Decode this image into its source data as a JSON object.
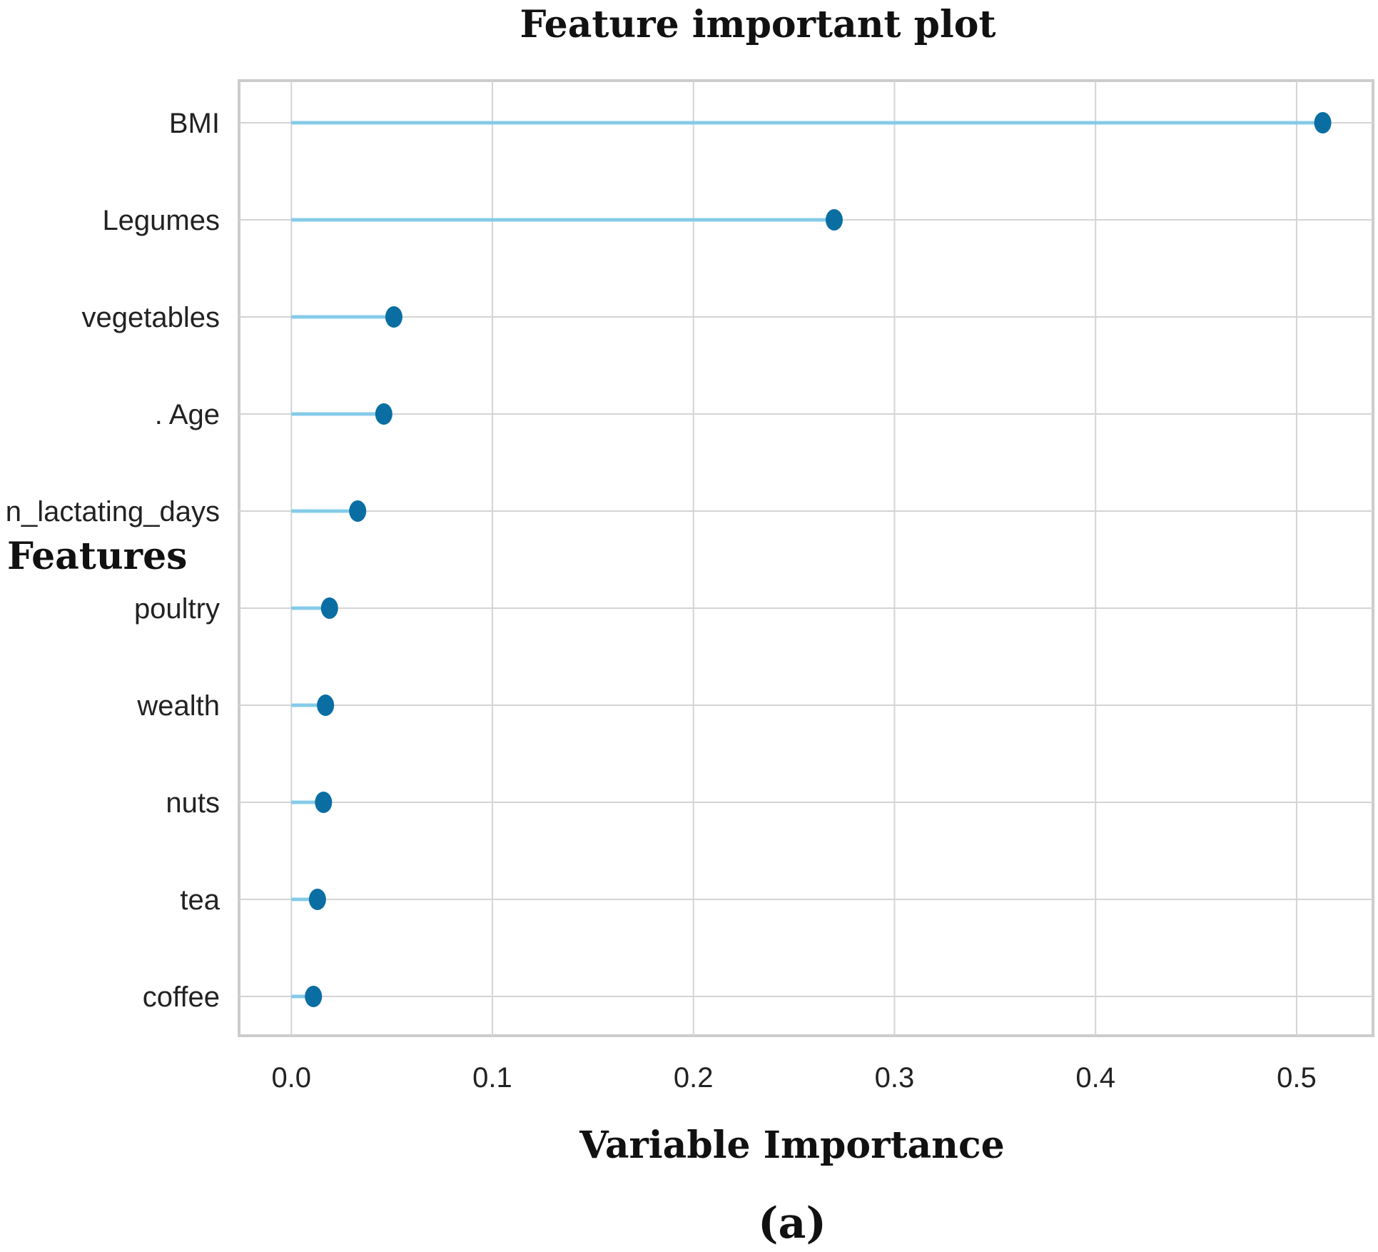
{
  "chart_data": {
    "type": "scatter",
    "style": "lollipop",
    "title": "Feature important plot",
    "xlabel": "Variable Importance",
    "ylabel": "Features",
    "panel_label": "(a)",
    "categories": [
      "BMI",
      "Legumes",
      "vegetables",
      ". Age",
      "n_lactating_days",
      "poultry",
      "wealth",
      "nuts",
      "tea",
      "coffee"
    ],
    "values": [
      0.513,
      0.27,
      0.051,
      0.046,
      0.033,
      0.019,
      0.017,
      0.016,
      0.013,
      0.011
    ],
    "xlim": [
      -0.026,
      0.538
    ],
    "xticks": [
      0.0,
      0.1,
      0.2,
      0.3,
      0.4,
      0.5
    ],
    "xtick_labels": [
      "0.0",
      "0.1",
      "0.2",
      "0.3",
      "0.4",
      "0.5"
    ],
    "grid": true,
    "legend": "none",
    "colors": {
      "marker": "#0a6ea3",
      "stem": "#7cc8ea",
      "grid": "#d4d4d4",
      "frame": "#cccccc"
    }
  }
}
